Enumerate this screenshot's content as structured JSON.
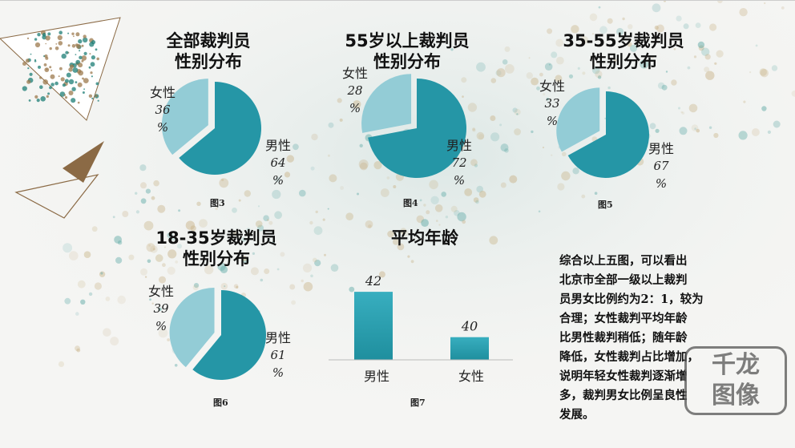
{
  "charts": [
    {
      "id": "fig3",
      "title": [
        "全部裁判员",
        "性别分布"
      ],
      "figure": "图3",
      "type": "pie",
      "slices": [
        {
          "name": "男性",
          "value": 64,
          "pct": [
            "64",
            "%"
          ]
        },
        {
          "name": "女性",
          "value": 36,
          "pct": [
            "36",
            "%"
          ]
        }
      ]
    },
    {
      "id": "fig4",
      "title": [
        "55岁以上裁判员",
        "性别分布"
      ],
      "figure": "图4",
      "type": "pie",
      "slices": [
        {
          "name": "男性",
          "value": 72,
          "pct": [
            "72",
            "%"
          ]
        },
        {
          "name": "女性",
          "value": 28,
          "pct": [
            "28",
            "%"
          ]
        }
      ]
    },
    {
      "id": "fig5",
      "title": [
        "35-55岁裁判员",
        "性别分布"
      ],
      "figure": "图5",
      "type": "pie",
      "slices": [
        {
          "name": "男性",
          "value": 67,
          "pct": [
            "67",
            "%"
          ]
        },
        {
          "name": "女性",
          "value": 33,
          "pct": [
            "33",
            "%"
          ]
        }
      ]
    },
    {
      "id": "fig6",
      "title": [
        "18-35岁裁判员",
        "性别分布"
      ],
      "figure": "图6",
      "type": "pie",
      "slices": [
        {
          "name": "男性",
          "value": 61,
          "pct": [
            "61",
            "%"
          ]
        },
        {
          "name": "女性",
          "value": 39,
          "pct": [
            "39",
            "%"
          ]
        }
      ]
    }
  ],
  "chart_data": [
    {
      "type": "pie",
      "title": "全部裁判员性别分布",
      "labels": [
        "男性",
        "女性"
      ],
      "values": [
        64,
        36
      ]
    },
    {
      "type": "pie",
      "title": "55岁以上裁判员性别分布",
      "labels": [
        "男性",
        "女性"
      ],
      "values": [
        72,
        28
      ]
    },
    {
      "type": "pie",
      "title": "35-55岁裁判员性别分布",
      "labels": [
        "男性",
        "女性"
      ],
      "values": [
        67,
        33
      ]
    },
    {
      "type": "pie",
      "title": "18-35岁裁判员性别分布",
      "labels": [
        "男性",
        "女性"
      ],
      "values": [
        61,
        39
      ]
    },
    {
      "type": "bar",
      "title": "平均年龄",
      "categories": [
        "男性",
        "女性"
      ],
      "values": [
        42,
        40
      ],
      "ylim": [
        39,
        42.5
      ]
    }
  ],
  "bar": {
    "title": "平均年龄",
    "figure": "图7",
    "categories": [
      "男性",
      "女性"
    ],
    "values": [
      42,
      40
    ],
    "ylim": [
      39,
      42.5
    ]
  },
  "summary": [
    "综合以上五图，可以看出",
    "北京市全部一级以上裁判",
    "员男女比例约为2：1，较为",
    "合理；女性裁判平均年龄",
    "比男性裁判稍低；随年龄",
    "降低，女性裁判占比增加，",
    "说明年轻女性裁判逐渐增",
    "多，裁判男女比例呈良性",
    "发展。"
  ],
  "watermark": [
    "千龙",
    "图像"
  ],
  "colors": {
    "male": "#2596a6",
    "female": "#93ccd6",
    "bar_top": "#38aebf",
    "bar_bottom": "#1f8f9e",
    "accent": "#8b6a45"
  }
}
